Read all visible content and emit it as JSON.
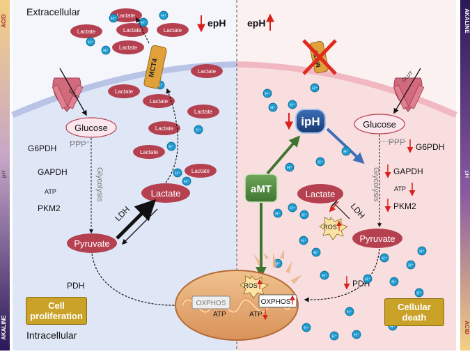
{
  "side_scale": {
    "left_top": "ACID",
    "left_mid": "pH",
    "left_bottom": "AKALINE",
    "right_top": "AKALINE",
    "right_mid": "pH",
    "right_bottom": "ACID",
    "colors": {
      "acid": "#e9b95f",
      "alkaline": "#2b1858"
    }
  },
  "regions": {
    "extracellular": "Extracellular",
    "intracellular": "Intracellular",
    "colors": {
      "left_cell": "#dbe3f5",
      "right_cell": "#f6d8d8",
      "membrane": "#b9c4e4",
      "membrane_right": "#f0b6bf"
    }
  },
  "left": {
    "ephi": "epH",
    "lactate": "Lactate",
    "proton": "H⁺",
    "glut": "GLUT",
    "mct4": "MCT4",
    "glucose": "Glucose",
    "g6pdh": "G6PDH",
    "ppp": "PPP",
    "gapdh": "GAPDH",
    "glycolysis": "Glycolysis",
    "atp": "ATP",
    "pkm2": "PKM2",
    "ldh": "LDH",
    "lactate_cell": "Lactate",
    "pyruvate": "Pyruvate",
    "pdh": "PDH",
    "box": "Cell proliferation"
  },
  "right": {
    "ephi": "epH",
    "mct4": "MCT4",
    "glut": "GLUT",
    "iph": "ipH",
    "amt": "aMT",
    "glucose": "Glucose",
    "ppp": "PPP",
    "g6pdh": "G6PDH",
    "gapdh": "GAPDH",
    "glycolysis": "Glycolysis",
    "atp": "ATP",
    "pkm2": "PKM2",
    "lactate": "Lactate",
    "ldh": "LDH",
    "ros": "ROS",
    "pyruvate": "Pyruvate",
    "pdh": "PDH",
    "box": "Cellular death"
  },
  "mito": {
    "oxphos_left": "OXPHOS",
    "atp_left": "ATP",
    "ros": "ROS",
    "oxphos_right": "OXPHOS",
    "atp_right": "ATP"
  },
  "colors": {
    "lactate": "#b5404f",
    "proton": "#1d9ad0",
    "up_arrow": "#d9211b",
    "ipH_fill": "#1f4d8f",
    "amt_fill": "#4e8a3c",
    "gold": "#c9a227"
  }
}
